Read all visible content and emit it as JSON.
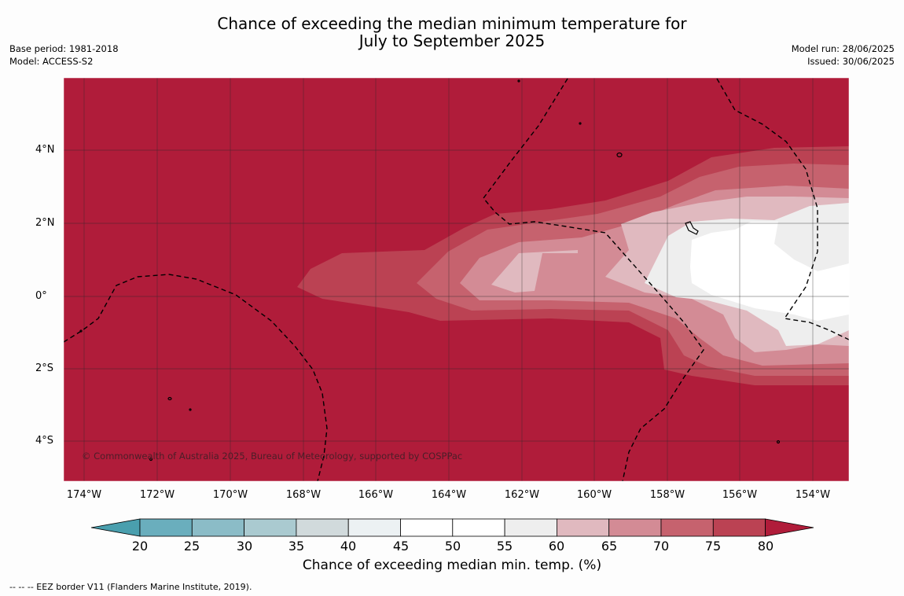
{
  "title": {
    "line1": "Chance of exceeding the median minimum temperature for",
    "line2": "July to September 2025"
  },
  "meta_left": {
    "base_period": "Base period: 1981-2018",
    "model": "Model: ACCESS-S2"
  },
  "meta_right": {
    "model_run": "Model run: 28/06/2025",
    "issued": "Issued: 30/06/2025"
  },
  "map": {
    "lat_ticks": [
      "4°N",
      "2°N",
      "0°",
      "2°S",
      "4°S"
    ],
    "lon_ticks": [
      "174°W",
      "172°W",
      "170°W",
      "168°W",
      "166°W",
      "164°W",
      "162°W",
      "160°W",
      "158°W",
      "156°W",
      "154°W"
    ],
    "credit": "© Commonwealth of Australia 2025, Bureau of Meteorology, supported by COSPPac"
  },
  "colorbar": {
    "ticks": [
      "20",
      "25",
      "30",
      "35",
      "40",
      "45",
      "50",
      "55",
      "60",
      "65",
      "70",
      "75",
      "80"
    ],
    "colors": {
      "below20": "#4a9fae",
      "20-25": "#6aaebd",
      "25-30": "#8bbcc7",
      "30-35": "#aacad0",
      "35-40": "#d1dadc",
      "40-45": "#ecf1f3",
      "45-50": "#ffffff",
      "50-55": "#ffffff",
      "55-60": "#eeeeee",
      "60-65": "#e0b9bf",
      "65-70": "#d38b95",
      "70-75": "#c6626e",
      "75-80": "#bb4253",
      "above80": "#b01c3a"
    },
    "title": "Chance of exceeding median min. temp. (%)"
  },
  "footnote": "--  --  -- EEZ border V11 (Flanders Marine Institute, 2019)."
}
